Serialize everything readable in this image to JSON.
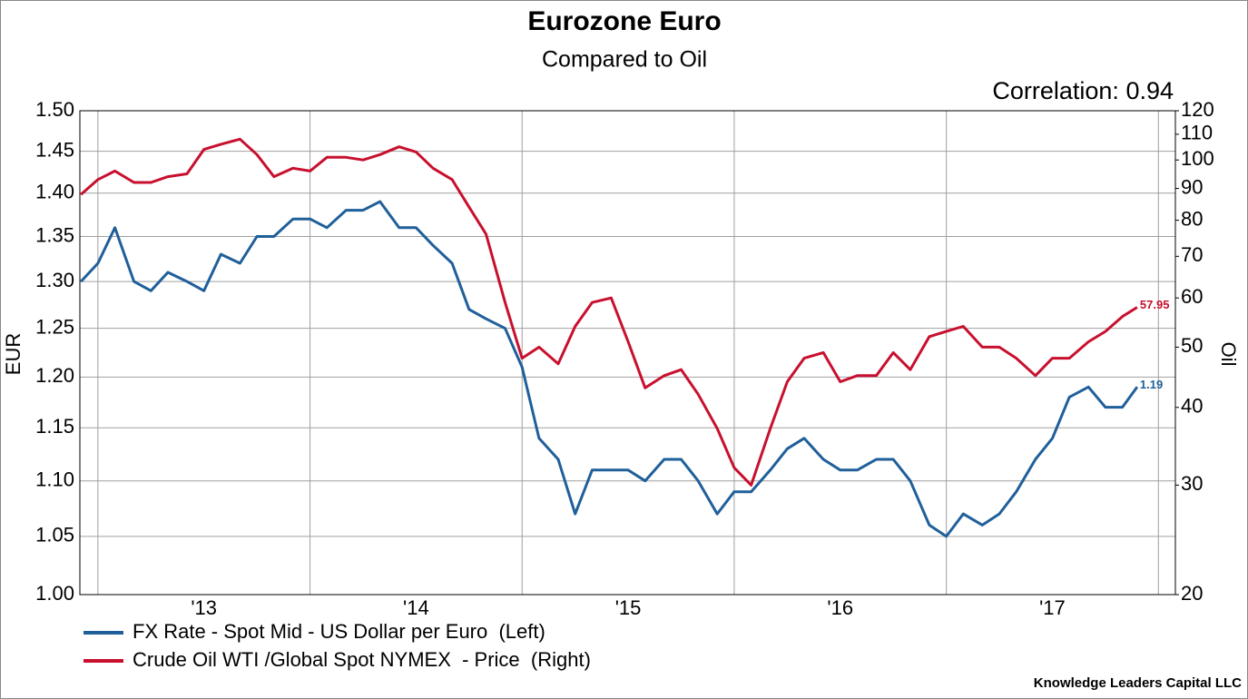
{
  "chart_data": {
    "type": "line",
    "title": "Eurozone Euro",
    "subtitle": "Compared to Oil",
    "annotation": "Correlation: 0.94",
    "source": "Knowledge Leaders Capital LLC",
    "ylabel": "EUR",
    "y2label": "Oil",
    "ylog": true,
    "y2log": true,
    "grid": true,
    "legend": "bottom-left",
    "x": [
      2012.92,
      2013.0,
      2013.08,
      2013.17,
      2013.25,
      2013.33,
      2013.42,
      2013.5,
      2013.58,
      2013.67,
      2013.75,
      2013.83,
      2013.92,
      2014.0,
      2014.08,
      2014.17,
      2014.25,
      2014.33,
      2014.42,
      2014.5,
      2014.58,
      2014.67,
      2014.75,
      2014.83,
      2014.92,
      2015.0,
      2015.08,
      2015.17,
      2015.25,
      2015.33,
      2015.42,
      2015.5,
      2015.58,
      2015.67,
      2015.75,
      2015.83,
      2015.92,
      2016.0,
      2016.08,
      2016.17,
      2016.25,
      2016.33,
      2016.42,
      2016.5,
      2016.58,
      2016.67,
      2016.75,
      2016.83,
      2016.92,
      2017.0,
      2017.08,
      2017.17,
      2017.25,
      2017.33,
      2017.42,
      2017.5,
      2017.58,
      2017.67,
      2017.75,
      2017.83,
      2017.9
    ],
    "xlim": [
      2012.915,
      2018.08
    ],
    "xticks": [
      {
        "value": 2013.5,
        "label": "'13"
      },
      {
        "value": 2014.5,
        "label": "'14"
      },
      {
        "value": 2015.5,
        "label": "'15"
      },
      {
        "value": 2016.5,
        "label": "'16"
      },
      {
        "value": 2017.5,
        "label": "'17"
      }
    ],
    "xgrid": [
      2013,
      2014,
      2015,
      2016,
      2017,
      2018
    ],
    "ylim": [
      1.0,
      1.5
    ],
    "yticks": [
      {
        "value": 1.0,
        "label": "1.00"
      },
      1.05,
      {
        "value": 1.1,
        "label": "1.10"
      },
      1.15,
      {
        "value": 1.2,
        "label": "1.20"
      },
      1.25,
      {
        "value": 1.3,
        "label": "1.30"
      },
      1.35,
      {
        "value": 1.4,
        "label": "1.40"
      },
      1.45,
      {
        "value": 1.5,
        "label": "1.50"
      }
    ],
    "y2lim": [
      20,
      120
    ],
    "y2ticks": [
      20,
      30,
      40,
      50,
      60,
      70,
      80,
      90,
      100,
      110,
      120
    ],
    "series": [
      {
        "name": "FX Rate - Spot Mid - US Dollar per Euro  (Left)",
        "color": "#1f5f9a",
        "values": [
          1.3,
          1.32,
          1.36,
          1.3,
          1.29,
          1.31,
          1.3,
          1.29,
          1.33,
          1.32,
          1.35,
          1.35,
          1.37,
          1.37,
          1.36,
          1.38,
          1.38,
          1.39,
          1.36,
          1.36,
          1.34,
          1.32,
          1.27,
          1.26,
          1.25,
          1.21,
          1.14,
          1.12,
          1.07,
          1.11,
          1.11,
          1.11,
          1.1,
          1.12,
          1.12,
          1.1,
          1.07,
          1.09,
          1.09,
          1.11,
          1.13,
          1.14,
          1.12,
          1.11,
          1.11,
          1.12,
          1.12,
          1.1,
          1.06,
          1.05,
          1.07,
          1.06,
          1.07,
          1.09,
          1.12,
          1.14,
          1.18,
          1.19,
          1.17,
          1.17,
          1.19
        ]
      },
      {
        "name": "Crude Oil WTI /Global Spot NYMEX  - Price  (Right)",
        "color": "#c8102e",
        "axis": "y2",
        "values": [
          88,
          93,
          96,
          92,
          92,
          94,
          95,
          104,
          106,
          108,
          102,
          94,
          97,
          96,
          101,
          101,
          100,
          102,
          105,
          103,
          97,
          93,
          84,
          76,
          59,
          48,
          50,
          47,
          54,
          59,
          60,
          51,
          43,
          45,
          46,
          42,
          37,
          32,
          30,
          37,
          44,
          48,
          49,
          44,
          45,
          45,
          49,
          46,
          52,
          53,
          54,
          50,
          50,
          48,
          45,
          48,
          48,
          51,
          53,
          56,
          57.95
        ]
      }
    ]
  }
}
